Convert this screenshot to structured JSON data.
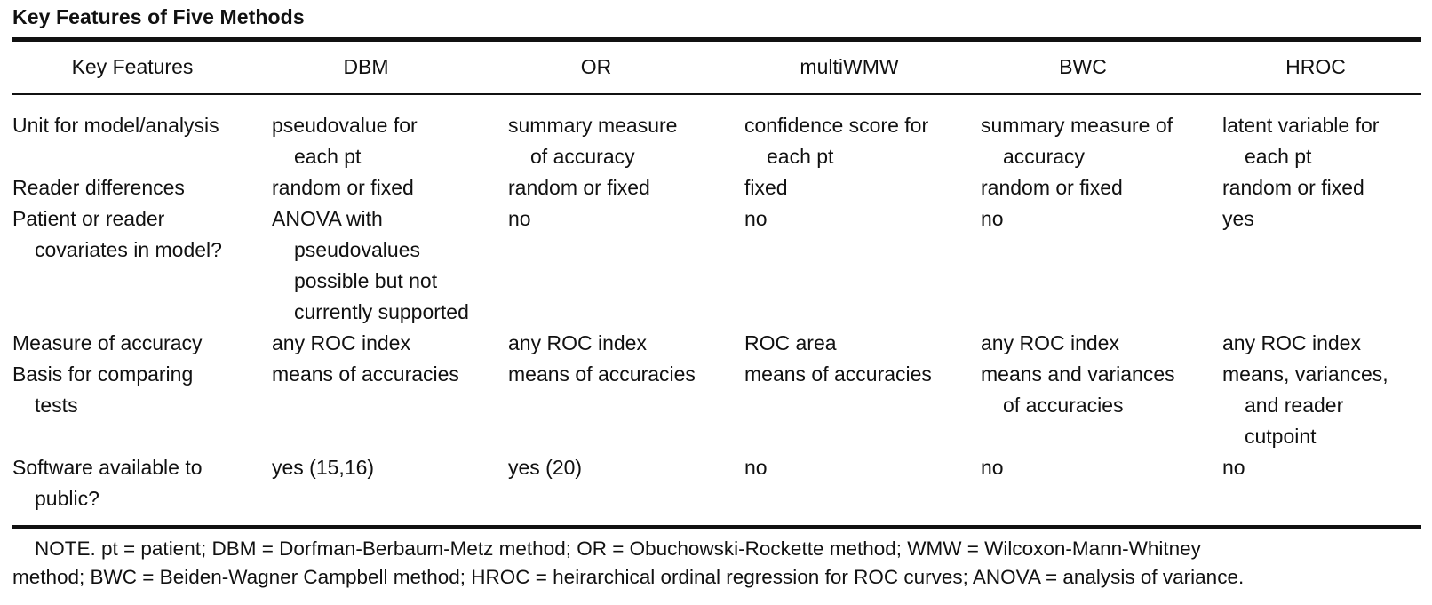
{
  "title": "Key Features of Five Methods",
  "columns": [
    "Key Features",
    "DBM",
    "OR",
    "multiWMW",
    "BWC",
    "HROC"
  ],
  "rows": [
    {
      "feature": [
        "Unit for model/analysis"
      ],
      "cells": [
        [
          "pseudovalue for",
          "each pt"
        ],
        [
          "summary measure",
          "of accuracy"
        ],
        [
          "confidence score for",
          "each pt"
        ],
        [
          "summary measure of",
          "accuracy"
        ],
        [
          "latent variable for",
          "each pt"
        ]
      ]
    },
    {
      "feature": [
        "Reader differences"
      ],
      "cells": [
        [
          "random or fixed"
        ],
        [
          "random or fixed"
        ],
        [
          "fixed"
        ],
        [
          "random or fixed"
        ],
        [
          "random or fixed"
        ]
      ]
    },
    {
      "feature": [
        "Patient or reader",
        "covariates in model?"
      ],
      "cells": [
        [
          "ANOVA with",
          "pseudovalues",
          "possible but not",
          "currently supported"
        ],
        [
          "no"
        ],
        [
          "no"
        ],
        [
          "no"
        ],
        [
          "yes"
        ]
      ]
    },
    {
      "feature": [
        "Measure of accuracy"
      ],
      "cells": [
        [
          "any ROC index"
        ],
        [
          "any ROC index"
        ],
        [
          "ROC area"
        ],
        [
          "any ROC index"
        ],
        [
          "any ROC index"
        ]
      ]
    },
    {
      "feature": [
        "Basis for comparing",
        "tests"
      ],
      "cells": [
        [
          "means of accuracies"
        ],
        [
          "means of accuracies"
        ],
        [
          "means of accuracies"
        ],
        [
          "means and variances",
          "of accuracies"
        ],
        [
          "means, variances,",
          "and reader",
          "cutpoint"
        ]
      ]
    },
    {
      "feature": [
        "Software available to",
        "public?"
      ],
      "cells": [
        [
          "yes (15,16)"
        ],
        [
          "yes (20)"
        ],
        [
          "no"
        ],
        [
          "no"
        ],
        [
          "no"
        ]
      ]
    }
  ],
  "note": [
    "NOTE. pt = patient; DBM = Dorfman-Berbaum-Metz method; OR = Obuchowski-Rockette method; WMW = Wilcoxon-Mann-Whitney",
    "method; BWC = Beiden-Wagner Campbell method; HROC = heirarchical ordinal regression for ROC curves; ANOVA = analysis of variance."
  ]
}
